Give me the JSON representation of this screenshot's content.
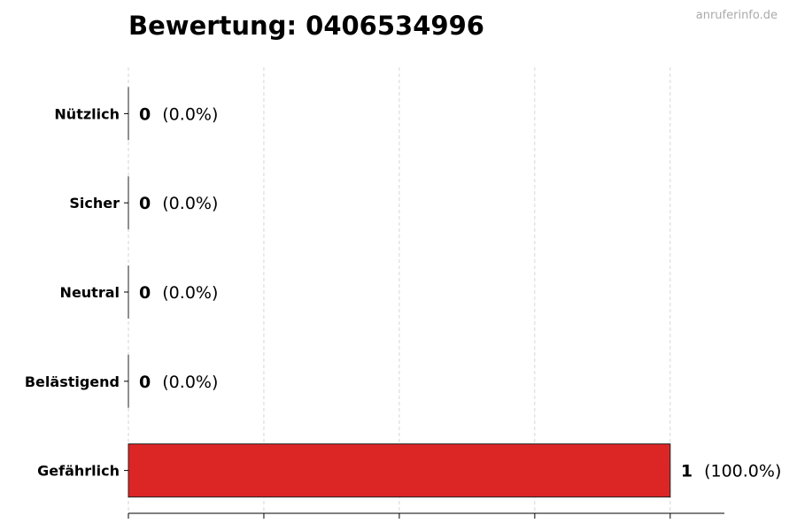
{
  "title": "Bewertung: 0406534996",
  "watermark": "anruferinfo.de",
  "chart_data": {
    "type": "bar",
    "orientation": "horizontal",
    "title": "Bewertung: 0406534996",
    "categories": [
      "Nützlich",
      "Sicher",
      "Neutral",
      "Belästigend",
      "Gefährlich"
    ],
    "values": [
      0,
      0,
      0,
      0,
      1
    ],
    "labels": [
      "(0.0%)",
      "(0.0%)",
      "(0.0%)",
      "(0.0%)",
      "(100.0%)"
    ],
    "colors": [
      "#2e7d32",
      "#1565c0",
      "#9e9e9e",
      "#f57c00",
      "#dc2626"
    ],
    "xlim": [
      0,
      1.1
    ],
    "xticks": [
      0,
      0.25,
      0.5,
      0.75,
      1
    ],
    "xtick_labels_shown": false,
    "grid": "x, dashed",
    "xlabel": "",
    "ylabel": ""
  }
}
